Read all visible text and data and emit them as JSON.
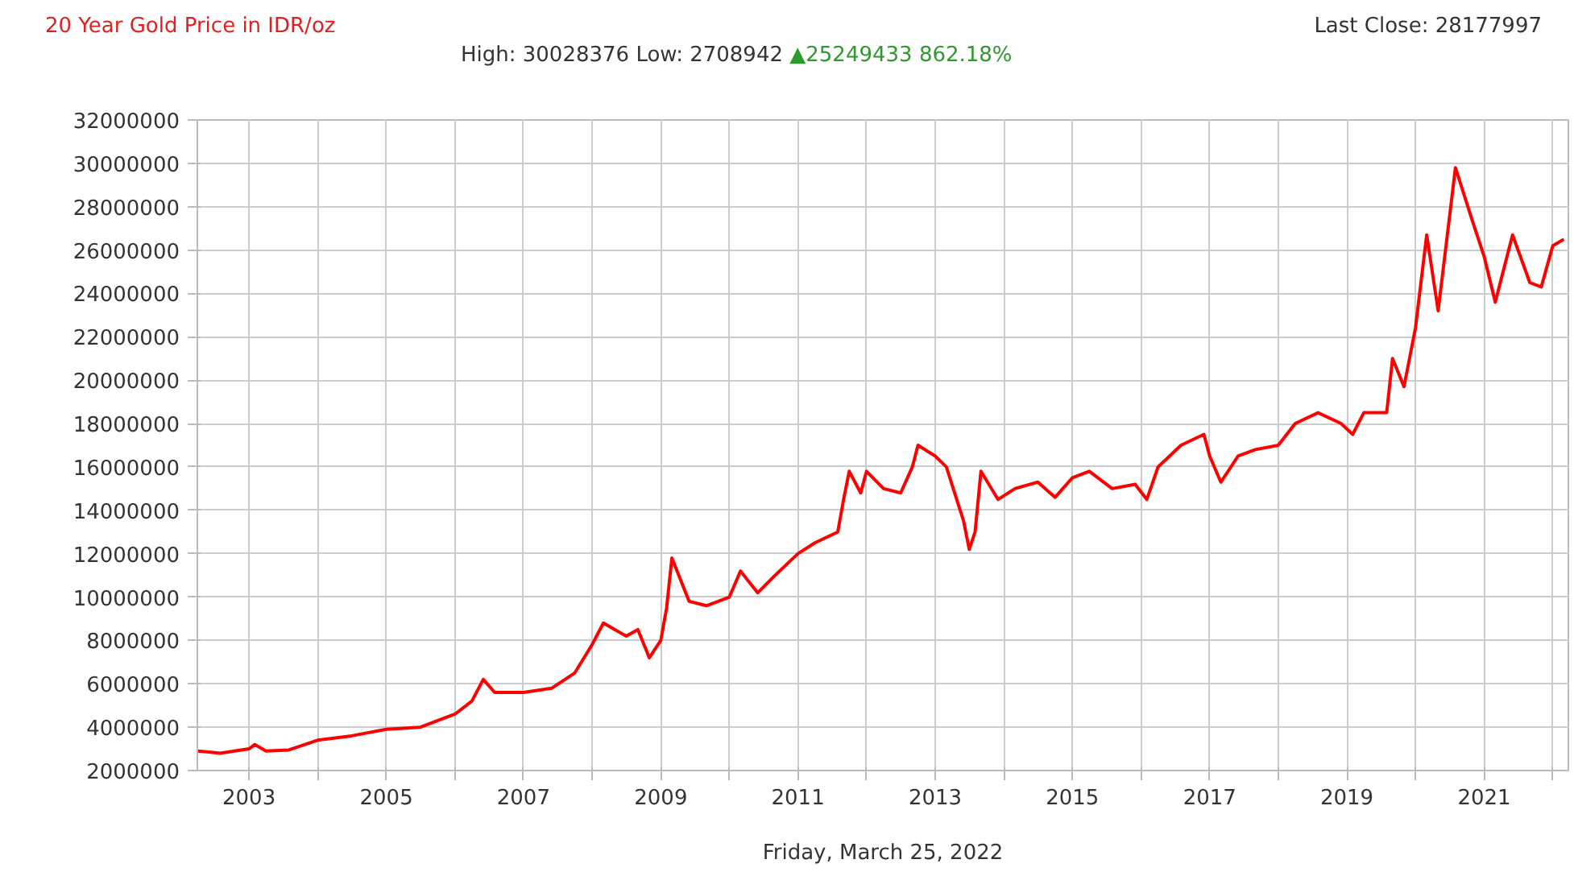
{
  "chart_data": {
    "type": "line",
    "title": "20 Year Gold Price in IDR/oz",
    "xlabel": "Friday, March 25, 2022",
    "annotations": [
      "High: 30028376 Low: 2708942",
      "▲25249433 862.18%",
      "Last Close: 28177997"
    ],
    "x": [
      "2002-04",
      "2002-08",
      "2003-01",
      "2003-02",
      "2003-04",
      "2003-08",
      "2004-01",
      "2004-07",
      "2005-01",
      "2005-07",
      "2006-01",
      "2006-04",
      "2006-06",
      "2006-08",
      "2007-01",
      "2007-06",
      "2007-10",
      "2008-01",
      "2008-03",
      "2008-07",
      "2008-09",
      "2008-11",
      "2009-01",
      "2009-02",
      "2009-03",
      "2009-06",
      "2009-09",
      "2010-01",
      "2010-03",
      "2010-06",
      "2010-09",
      "2011-01",
      "2011-04",
      "2011-08",
      "2011-09",
      "2011-10",
      "2011-12",
      "2012-01",
      "2012-04",
      "2012-07",
      "2012-09",
      "2012-10",
      "2013-01",
      "2013-03",
      "2013-06",
      "2013-07",
      "2013-08",
      "2013-09",
      "2013-12",
      "2014-03",
      "2014-07",
      "2014-10",
      "2015-01",
      "2015-04",
      "2015-08",
      "2015-12",
      "2016-02",
      "2016-04",
      "2016-08",
      "2016-12",
      "2017-01",
      "2017-03",
      "2017-06",
      "2017-09",
      "2018-01",
      "2018-04",
      "2018-08",
      "2018-12",
      "2019-02",
      "2019-04",
      "2019-08",
      "2019-09",
      "2019-11",
      "2020-01",
      "2020-03",
      "2020-05",
      "2020-08",
      "2020-11",
      "2021-01",
      "2021-03",
      "2021-06",
      "2021-09",
      "2021-11",
      "2022-01",
      "2022-03"
    ],
    "series": [
      {
        "color": "#ff0000",
        "values": [
          2900000,
          2800000,
          3000000,
          3200000,
          2900000,
          2950000,
          3400000,
          3600000,
          3900000,
          4000000,
          4600000,
          5200000,
          6200000,
          5600000,
          5600000,
          5800000,
          6500000,
          7800000,
          8800000,
          8200000,
          8500000,
          7200000,
          8000000,
          9500000,
          11800000,
          9800000,
          9600000,
          10000000,
          11200000,
          10200000,
          11000000,
          12000000,
          12500000,
          13000000,
          14500000,
          15800000,
          14800000,
          15800000,
          15000000,
          14800000,
          16000000,
          17000000,
          16500000,
          16000000,
          13500000,
          12200000,
          13000000,
          15800000,
          14500000,
          15000000,
          15300000,
          14600000,
          15500000,
          15800000,
          15000000,
          15200000,
          14500000,
          16000000,
          17000000,
          17500000,
          16500000,
          15300000,
          16500000,
          16800000,
          17000000,
          18000000,
          18500000,
          18000000,
          17500000,
          18500000,
          18500000,
          21000000,
          19700000,
          22400000,
          26700000,
          23200000,
          29800000,
          27300000,
          25700000,
          23600000,
          26700000,
          24500000,
          24300000,
          26200000,
          26500000
        ]
      }
    ],
    "xlim": [
      "2002-04-01",
      "2022-03-25"
    ],
    "xticks": [
      {
        "value": "2003",
        "label": "2003"
      },
      {
        "value": "2004",
        "label": null
      },
      {
        "value": "2005",
        "label": "2005"
      },
      {
        "value": "2006",
        "label": null
      },
      {
        "value": "2007",
        "label": "2007"
      },
      {
        "value": "2008",
        "label": null
      },
      {
        "value": "2009",
        "label": "2009"
      },
      {
        "value": "2010",
        "label": null
      },
      {
        "value": "2011",
        "label": "2011"
      },
      {
        "value": "2012",
        "label": null
      },
      {
        "value": "2013",
        "label": "2013"
      },
      {
        "value": "2014",
        "label": null
      },
      {
        "value": "2015",
        "label": "2015"
      },
      {
        "value": "2016",
        "label": null
      },
      {
        "value": "2017",
        "label": "2017"
      },
      {
        "value": "2018",
        "label": null
      },
      {
        "value": "2019",
        "label": "2019"
      },
      {
        "value": "2020",
        "label": null
      },
      {
        "value": "2021",
        "label": "2021"
      },
      {
        "value": "2022",
        "label": null
      }
    ],
    "ylim": [
      2000000,
      32000000
    ],
    "yticks": [
      2000000,
      4000000,
      6000000,
      8000000,
      10000000,
      12000000,
      14000000,
      16000000,
      18000000,
      20000000,
      22000000,
      24000000,
      26000000,
      28000000,
      30000000,
      32000000
    ],
    "grid": true,
    "marker": "none",
    "line_style": "solid"
  }
}
